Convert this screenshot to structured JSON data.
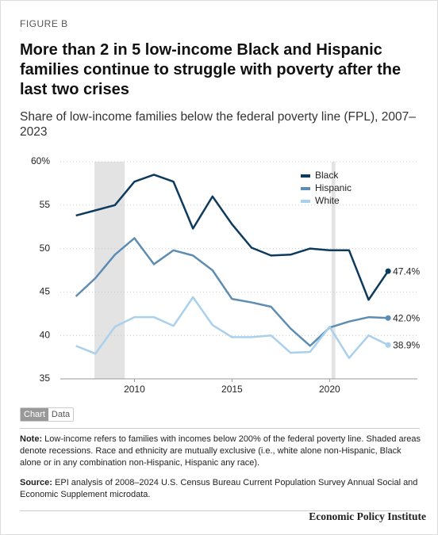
{
  "figure_label": "FIGURE B",
  "chart_data": {
    "type": "line",
    "title": "More than 2 in 5 low-income Black and Hispanic families continue to struggle with poverty after the last two crises",
    "subtitle": "Share of low-income families below the federal poverty line (FPL), 2007–2023",
    "x": [
      2007,
      2008,
      2009,
      2010,
      2011,
      2012,
      2013,
      2014,
      2015,
      2016,
      2017,
      2018,
      2019,
      2020,
      2021,
      2022,
      2023
    ],
    "series": [
      {
        "name": "Black",
        "color": "#0d3b5e",
        "values": [
          53.8,
          54.4,
          55.0,
          57.7,
          58.5,
          57.7,
          52.3,
          56.0,
          52.8,
          50.1,
          49.2,
          49.3,
          50.0,
          49.8,
          49.8,
          44.1,
          47.4
        ],
        "value_labels": [
          null,
          null,
          null,
          null,
          null,
          null,
          null,
          null,
          null,
          null,
          null,
          null,
          null,
          null,
          null,
          null,
          "47.4%"
        ]
      },
      {
        "name": "Hispanic",
        "color": "#5d8db3",
        "values": [
          44.5,
          46.6,
          49.3,
          51.2,
          48.2,
          49.8,
          49.2,
          47.5,
          44.2,
          43.8,
          43.3,
          40.8,
          38.8,
          40.9,
          41.6,
          42.1,
          42.0
        ],
        "value_labels": [
          null,
          null,
          null,
          null,
          null,
          null,
          null,
          null,
          null,
          null,
          null,
          null,
          null,
          null,
          null,
          null,
          "42.0%"
        ]
      },
      {
        "name": "White",
        "color": "#a9d0ec",
        "values": [
          38.8,
          37.9,
          41.0,
          42.1,
          42.1,
          41.1,
          44.4,
          41.2,
          39.8,
          39.8,
          40.0,
          38.0,
          38.1,
          41.0,
          37.4,
          40.0,
          38.9
        ],
        "value_labels": [
          null,
          null,
          null,
          null,
          null,
          null,
          null,
          null,
          null,
          null,
          null,
          null,
          null,
          null,
          null,
          null,
          "38.9%"
        ]
      }
    ],
    "recessions": [
      [
        2007.95,
        2009.5
      ],
      [
        2020.1,
        2020.3
      ]
    ],
    "xlim": [
      2006.2,
      2024.5
    ],
    "xticks": [
      2010,
      2015,
      2020
    ],
    "ylim": [
      35,
      60
    ],
    "yticks": [
      35,
      40,
      45,
      50,
      55,
      {
        "value": 60,
        "label": "60%"
      }
    ],
    "grid": true,
    "legend": "top-right"
  },
  "toggle": [
    "Chart",
    "Data"
  ],
  "note": {
    "label": "Note:",
    "text": " Low-income refers to families with incomes below 200% of the federal poverty line. Shaded areas denote recessions. Race and ethnicity are mutually exclusive (i.e., white alone non-Hispanic, Black alone or in any combination non-Hispanic, Hispanic any race)."
  },
  "source": {
    "label": "Source:",
    "text": " EPI analysis of 2008–2024 U.S. Census Bureau Current Population Survey Annual Social and Economic Supplement microdata."
  },
  "footer": "Economic Policy Institute"
}
